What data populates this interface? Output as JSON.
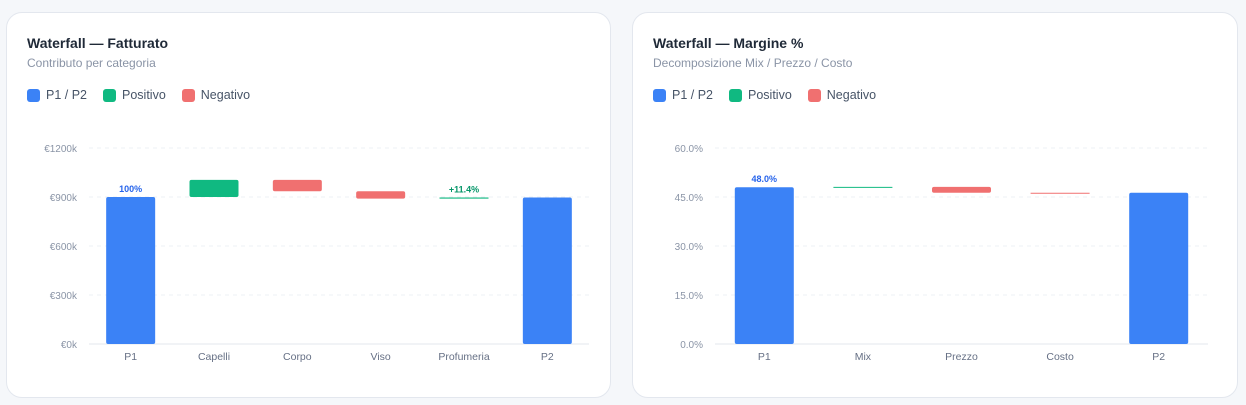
{
  "colors": {
    "total": "#3b82f6",
    "positive": "#10b981",
    "negative": "#f07070",
    "grid": "#eef1f5",
    "tick": "#8a94a6",
    "label_total": "#2563eb",
    "label_positive": "#059669"
  },
  "legend": {
    "total": "P1 / P2",
    "positive": "Positivo",
    "negative": "Negativo"
  },
  "cards": [
    {
      "title": "Waterfall — Fatturato",
      "subtitle": "Contributo per categoria"
    },
    {
      "title": "Waterfall — Margine %",
      "subtitle": "Decomposizione Mix / Prezzo / Costo"
    }
  ],
  "chart_data": [
    {
      "type": "bar",
      "variant": "waterfall",
      "categories": [
        "P1",
        "Capelli",
        "Corpo",
        "Viso",
        "Profumeria",
        "P2"
      ],
      "bars": [
        {
          "kind": "total",
          "start": 0,
          "end": 900000
        },
        {
          "kind": "positive",
          "start": 900000,
          "end": 1005000
        },
        {
          "kind": "negative",
          "start": 1005000,
          "end": 935000
        },
        {
          "kind": "negative",
          "start": 935000,
          "end": 890000
        },
        {
          "kind": "positive",
          "start": 890000,
          "end": 897000
        },
        {
          "kind": "total",
          "start": 0,
          "end": 897000
        }
      ],
      "data_labels": [
        {
          "category": "P1",
          "text": "100%",
          "kind": "total"
        },
        {
          "category": "Profumeria",
          "text": "+11.4%",
          "kind": "positive"
        }
      ],
      "yticks": [
        0,
        300000,
        600000,
        900000,
        1200000
      ],
      "ytick_labels": [
        "€0k",
        "€300k",
        "€600k",
        "€900k",
        "€1200k"
      ],
      "ylim": [
        0,
        1200000
      ],
      "grid": true
    },
    {
      "type": "bar",
      "variant": "waterfall",
      "categories": [
        "P1",
        "Mix",
        "Prezzo",
        "Costo",
        "P2"
      ],
      "bars": [
        {
          "kind": "total",
          "start": 0,
          "end": 48.0
        },
        {
          "kind": "positive",
          "start": 48.0,
          "end": 48.1
        },
        {
          "kind": "negative",
          "start": 48.1,
          "end": 46.3
        },
        {
          "kind": "negative",
          "start": 46.3,
          "end": 46.3
        },
        {
          "kind": "total",
          "start": 0,
          "end": 46.3
        }
      ],
      "data_labels": [
        {
          "category": "P1",
          "text": "48.0%",
          "kind": "total"
        }
      ],
      "yticks": [
        0,
        15,
        30,
        45,
        60
      ],
      "ytick_labels": [
        "0.0%",
        "15.0%",
        "30.0%",
        "45.0%",
        "60.0%"
      ],
      "ylim": [
        0,
        60
      ],
      "grid": true
    }
  ]
}
